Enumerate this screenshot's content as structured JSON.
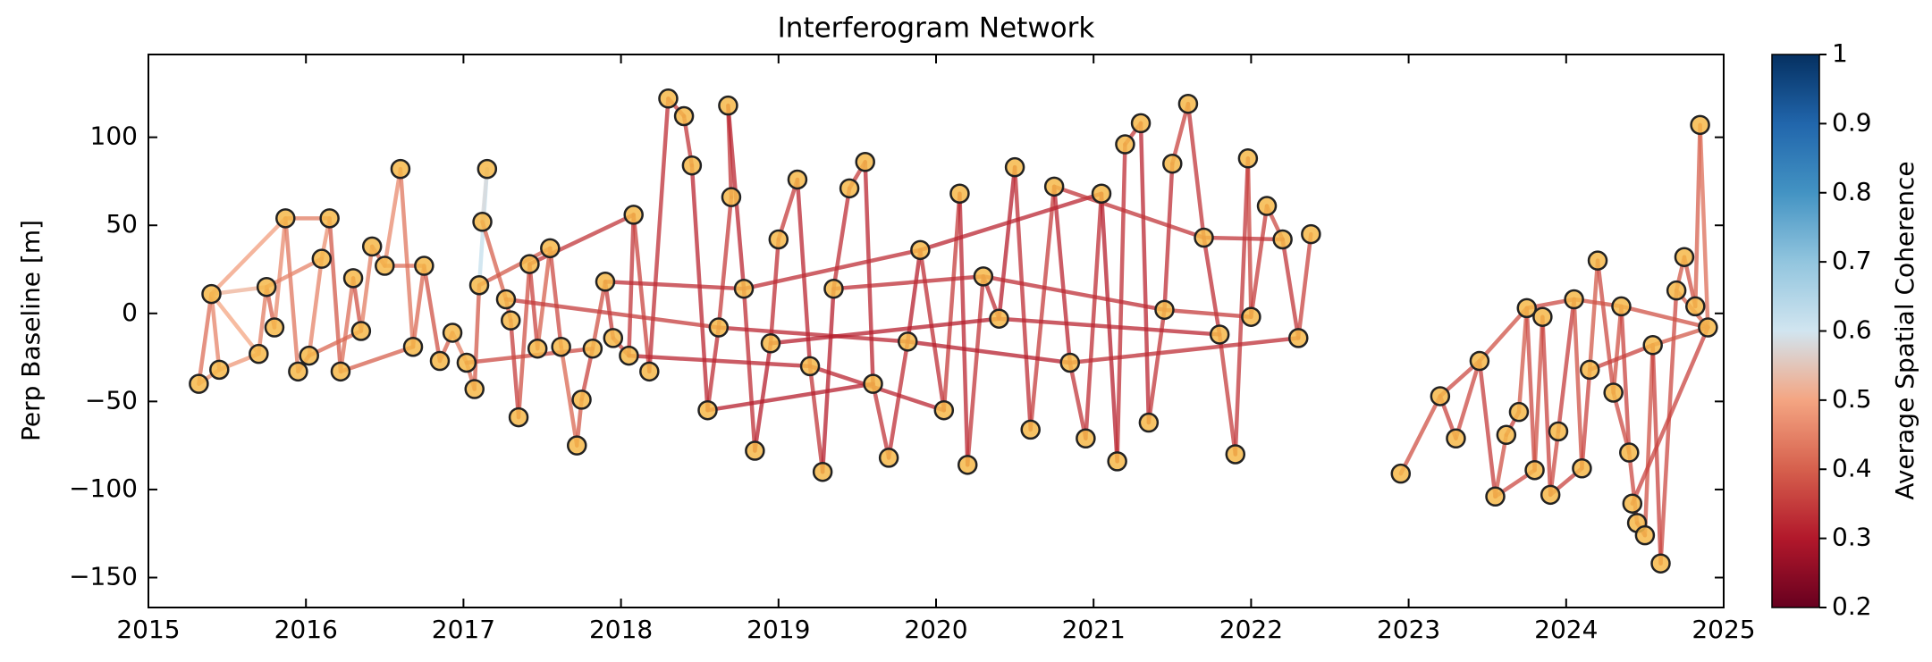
{
  "chart_data": {
    "type": "network",
    "title": "Interferogram Network",
    "ylabel": "Perp Baseline [m]",
    "colorbar_label": "Average Spatial Coherence",
    "x": [
      2015.32,
      2015.4,
      2015.45,
      2015.7,
      2015.75,
      2015.8,
      2015.87,
      2015.95,
      2016.02,
      2016.1,
      2016.15,
      2016.22,
      2016.3,
      2016.35,
      2016.42,
      2016.5,
      2016.6,
      2016.68,
      2016.75,
      2016.85,
      2016.93,
      2017.02,
      2017.07,
      2017.1,
      2017.15,
      2017.12,
      2017.27,
      2017.3,
      2017.35,
      2017.42,
      2017.47,
      2017.55,
      2017.62,
      2017.72,
      2017.75,
      2017.82,
      2017.9,
      2017.95,
      2018.05,
      2018.08,
      2018.18,
      2018.3,
      2018.4,
      2018.45,
      2018.55,
      2018.62,
      2018.7,
      2018.68,
      2018.78,
      2018.85,
      2018.95,
      2019.0,
      2019.12,
      2019.2,
      2019.28,
      2019.35,
      2019.45,
      2019.55,
      2019.6,
      2019.7,
      2019.82,
      2019.9,
      2020.05,
      2020.15,
      2020.2,
      2020.3,
      2020.4,
      2020.5,
      2020.6,
      2020.75,
      2020.85,
      2020.95,
      2021.05,
      2021.15,
      2021.2,
      2021.3,
      2021.35,
      2021.45,
      2021.5,
      2021.6,
      2021.7,
      2021.8,
      2021.9,
      2021.98,
      2022.0,
      2022.1,
      2022.2,
      2022.3,
      2022.38,
      2022.95,
      2023.2,
      2023.3,
      2023.45,
      2023.55,
      2023.62,
      2023.7,
      2023.75,
      2023.8,
      2023.85,
      2023.9,
      2023.95,
      2024.05,
      2024.1,
      2024.15,
      2024.2,
      2024.3,
      2024.35,
      2024.4,
      2024.45,
      2024.5,
      2024.55,
      2024.6,
      2024.7,
      2024.75,
      2024.82,
      2024.85,
      2024.9,
      2024.42
    ],
    "y": [
      -40,
      11,
      -32,
      -23,
      15,
      -8,
      54,
      -33,
      -24,
      31,
      54,
      -33,
      20,
      -10,
      38,
      27,
      82,
      -19,
      27,
      -27,
      -11,
      -28,
      -43,
      16,
      82,
      52,
      8,
      -4,
      -59,
      28,
      -20,
      37,
      -19,
      -75,
      -49,
      -20,
      18,
      -14,
      -24,
      56,
      -33,
      122,
      112,
      84,
      -55,
      -8,
      66,
      118,
      14,
      -78,
      -17,
      42,
      76,
      -30,
      -90,
      14,
      71,
      86,
      -40,
      -82,
      -16,
      36,
      -55,
      68,
      -86,
      21,
      -3,
      83,
      -66,
      72,
      -28,
      -71,
      68,
      -84,
      96,
      108,
      -62,
      2,
      85,
      119,
      43,
      -12,
      -80,
      88,
      -2,
      61,
      42,
      -14,
      45,
      -91,
      -47,
      -71,
      -27,
      -104,
      -69,
      -56,
      3,
      -89,
      -2,
      -103,
      -67,
      8,
      -88,
      -32,
      30,
      -45,
      4,
      -79,
      -119,
      -126,
      -18,
      -142,
      13,
      32,
      4,
      107,
      -8,
      -108
    ],
    "edges": [
      [
        0,
        1,
        0.42
      ],
      [
        1,
        2,
        0.45
      ],
      [
        2,
        3,
        0.48
      ],
      [
        3,
        4,
        0.44
      ],
      [
        4,
        5,
        0.4
      ],
      [
        5,
        6,
        0.46
      ],
      [
        6,
        7,
        0.43
      ],
      [
        7,
        8,
        0.41
      ],
      [
        8,
        9,
        0.45
      ],
      [
        9,
        10,
        0.47
      ],
      [
        10,
        11,
        0.39
      ],
      [
        11,
        12,
        0.42
      ],
      [
        12,
        13,
        0.38
      ],
      [
        13,
        14,
        0.44
      ],
      [
        14,
        15,
        0.4
      ],
      [
        15,
        16,
        0.46
      ],
      [
        16,
        17,
        0.43
      ],
      [
        17,
        18,
        0.41
      ],
      [
        18,
        19,
        0.38
      ],
      [
        19,
        20,
        0.4
      ],
      [
        20,
        21,
        0.44
      ],
      [
        21,
        22,
        0.42
      ],
      [
        22,
        23,
        0.39
      ],
      [
        23,
        24,
        0.62
      ],
      [
        24,
        25,
        0.58
      ],
      [
        25,
        26,
        0.4
      ],
      [
        26,
        27,
        0.37
      ],
      [
        27,
        28,
        0.35
      ],
      [
        28,
        29,
        0.38
      ],
      [
        29,
        30,
        0.36
      ],
      [
        30,
        31,
        0.4
      ],
      [
        31,
        32,
        0.37
      ],
      [
        32,
        33,
        0.41
      ],
      [
        33,
        34,
        0.39
      ],
      [
        34,
        35,
        0.36
      ],
      [
        35,
        36,
        0.38
      ],
      [
        36,
        37,
        0.35
      ],
      [
        37,
        38,
        0.37
      ],
      [
        38,
        39,
        0.34
      ],
      [
        39,
        40,
        0.36
      ],
      [
        40,
        41,
        0.33
      ],
      [
        41,
        42,
        0.35
      ],
      [
        42,
        43,
        0.34
      ],
      [
        43,
        44,
        0.32
      ],
      [
        44,
        45,
        0.33
      ],
      [
        45,
        46,
        0.35
      ],
      [
        46,
        47,
        0.34
      ],
      [
        47,
        48,
        0.32
      ],
      [
        48,
        49,
        0.33
      ],
      [
        49,
        50,
        0.31
      ],
      [
        50,
        51,
        0.33
      ],
      [
        51,
        52,
        0.35
      ],
      [
        52,
        53,
        0.32
      ],
      [
        53,
        54,
        0.34
      ],
      [
        54,
        55,
        0.31
      ],
      [
        55,
        56,
        0.33
      ],
      [
        56,
        57,
        0.35
      ],
      [
        57,
        58,
        0.32
      ],
      [
        58,
        59,
        0.34
      ],
      [
        59,
        60,
        0.33
      ],
      [
        60,
        61,
        0.31
      ],
      [
        61,
        62,
        0.33
      ],
      [
        62,
        63,
        0.35
      ],
      [
        63,
        64,
        0.32
      ],
      [
        64,
        65,
        0.34
      ],
      [
        65,
        66,
        0.33
      ],
      [
        66,
        67,
        0.31
      ],
      [
        67,
        68,
        0.33
      ],
      [
        68,
        69,
        0.35
      ],
      [
        69,
        70,
        0.32
      ],
      [
        70,
        71,
        0.34
      ],
      [
        71,
        72,
        0.33
      ],
      [
        72,
        73,
        0.31
      ],
      [
        73,
        74,
        0.33
      ],
      [
        74,
        75,
        0.35
      ],
      [
        75,
        76,
        0.32
      ],
      [
        76,
        77,
        0.34
      ],
      [
        77,
        78,
        0.33
      ],
      [
        78,
        79,
        0.36
      ],
      [
        79,
        80,
        0.34
      ],
      [
        80,
        81,
        0.33
      ],
      [
        81,
        82,
        0.35
      ],
      [
        82,
        83,
        0.34
      ],
      [
        83,
        84,
        0.36
      ],
      [
        84,
        85,
        0.35
      ],
      [
        85,
        86,
        0.37
      ],
      [
        86,
        87,
        0.34
      ],
      [
        87,
        88,
        0.36
      ],
      [
        89,
        90,
        0.38
      ],
      [
        90,
        91,
        0.36
      ],
      [
        91,
        92,
        0.37
      ],
      [
        92,
        93,
        0.35
      ],
      [
        93,
        94,
        0.38
      ],
      [
        94,
        95,
        0.36
      ],
      [
        95,
        96,
        0.39
      ],
      [
        96,
        97,
        0.37
      ],
      [
        97,
        98,
        0.38
      ],
      [
        98,
        99,
        0.36
      ],
      [
        99,
        100,
        0.37
      ],
      [
        100,
        101,
        0.35
      ],
      [
        101,
        102,
        0.38
      ],
      [
        102,
        103,
        0.36
      ],
      [
        103,
        104,
        0.39
      ],
      [
        104,
        105,
        0.37
      ],
      [
        105,
        106,
        0.38
      ],
      [
        106,
        107,
        0.36
      ],
      [
        107,
        108,
        0.37
      ],
      [
        108,
        109,
        0.35
      ],
      [
        109,
        110,
        0.38
      ],
      [
        110,
        111,
        0.36
      ],
      [
        111,
        112,
        0.37
      ],
      [
        112,
        113,
        0.39
      ],
      [
        113,
        114,
        0.38
      ],
      [
        114,
        115,
        0.4
      ],
      [
        115,
        116,
        0.42
      ],
      [
        116,
        117,
        0.36
      ],
      [
        1,
        3,
        0.5
      ],
      [
        1,
        4,
        0.52
      ],
      [
        1,
        6,
        0.49
      ],
      [
        0,
        2,
        0.47
      ],
      [
        4,
        9,
        0.45
      ],
      [
        6,
        10,
        0.44
      ],
      [
        8,
        13,
        0.41
      ],
      [
        11,
        17,
        0.4
      ],
      [
        15,
        18,
        0.42
      ],
      [
        21,
        35,
        0.37
      ],
      [
        23,
        31,
        0.39
      ],
      [
        26,
        45,
        0.35
      ],
      [
        29,
        39,
        0.34
      ],
      [
        36,
        48,
        0.33
      ],
      [
        38,
        53,
        0.32
      ],
      [
        44,
        58,
        0.31
      ],
      [
        45,
        60,
        0.32
      ],
      [
        48,
        61,
        0.33
      ],
      [
        50,
        66,
        0.31
      ],
      [
        53,
        62,
        0.32
      ],
      [
        55,
        65,
        0.33
      ],
      [
        60,
        70,
        0.31
      ],
      [
        61,
        72,
        0.32
      ],
      [
        65,
        77,
        0.33
      ],
      [
        66,
        81,
        0.32
      ],
      [
        69,
        80,
        0.34
      ],
      [
        70,
        87,
        0.33
      ],
      [
        77,
        84,
        0.35
      ],
      [
        80,
        86,
        0.34
      ],
      [
        90,
        92,
        0.37
      ],
      [
        92,
        96,
        0.38
      ],
      [
        96,
        101,
        0.37
      ],
      [
        101,
        106,
        0.38
      ],
      [
        103,
        110,
        0.36
      ],
      [
        105,
        107,
        0.37
      ],
      [
        106,
        116,
        0.38
      ],
      [
        110,
        116,
        0.39
      ],
      [
        112,
        116,
        0.4
      ],
      [
        99,
        102,
        0.36
      ],
      [
        93,
        97,
        0.37
      ]
    ],
    "xlim": [
      2015,
      2025
    ],
    "xticks": [
      2015,
      2016,
      2017,
      2018,
      2019,
      2020,
      2021,
      2022,
      2023,
      2024,
      2025
    ],
    "ylim": [
      -167,
      147
    ],
    "yticks": [
      {
        "value": -150,
        "label": "−150"
      },
      {
        "value": -100,
        "label": "−100"
      },
      {
        "value": -50,
        "label": "−50"
      },
      0,
      50,
      100
    ],
    "clim": [
      0.2,
      1.0
    ],
    "cticks": [
      0.2,
      0.3,
      0.4,
      0.5,
      0.6,
      0.7,
      0.8,
      0.9,
      1.0
    ],
    "colormap": [
      "#67001f",
      "#b2182b",
      "#d6604d",
      "#f4a582",
      "#d1e5f0",
      "#92c5de",
      "#4393c3",
      "#2166ac",
      "#053061"
    ],
    "node_color": "#f6b94a",
    "node_edge_color": "#222222"
  }
}
